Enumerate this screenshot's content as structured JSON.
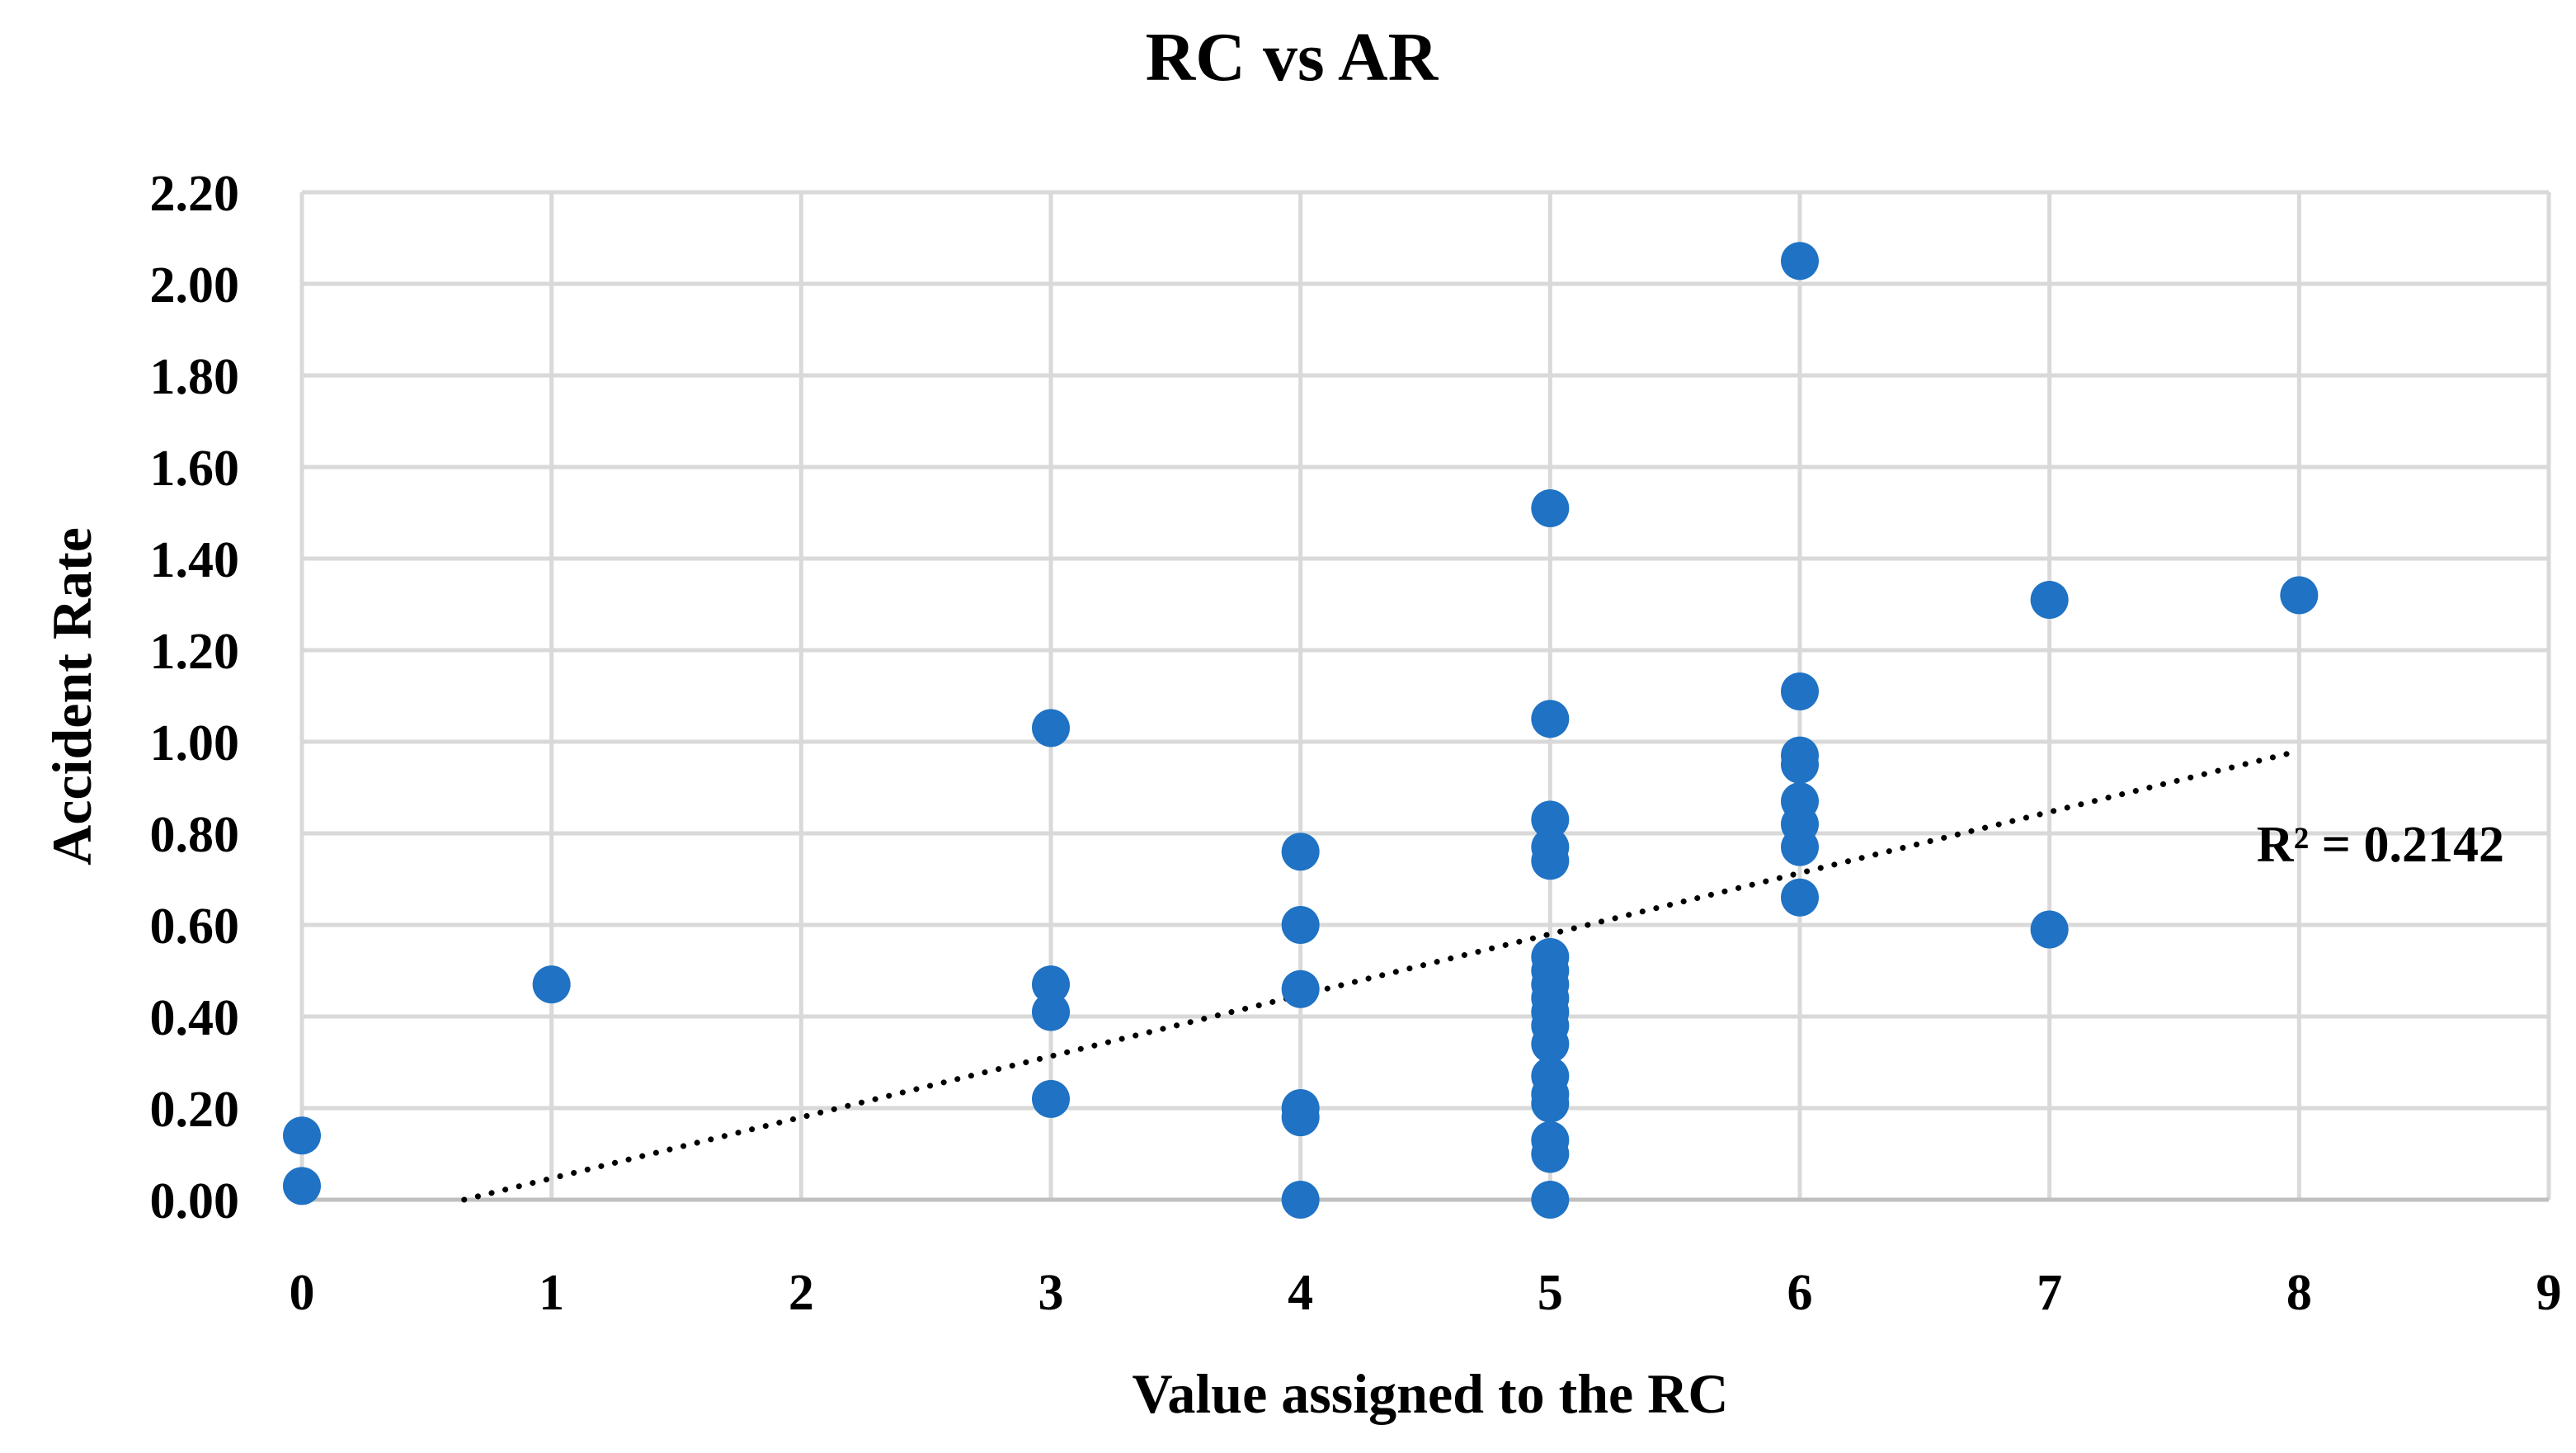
{
  "chart_data": {
    "type": "scatter",
    "title": "RC vs AR",
    "xlabel": "Value assigned to the RC",
    "ylabel": "Accident Rate",
    "xlim": [
      0,
      9
    ],
    "ylim": [
      0,
      2.2
    ],
    "x_ticks": [
      "0",
      "1",
      "2",
      "3",
      "4",
      "5",
      "6",
      "7",
      "8",
      "9"
    ],
    "y_ticks": [
      "0.00",
      "0.20",
      "0.40",
      "0.60",
      "0.80",
      "1.00",
      "1.20",
      "1.40",
      "1.60",
      "1.80",
      "2.00",
      "2.20"
    ],
    "grid": true,
    "marker_color": "#1f72c4",
    "series": [
      {
        "name": "AR",
        "points": [
          {
            "x": 0,
            "y": 0.14
          },
          {
            "x": 0,
            "y": 0.03
          },
          {
            "x": 1,
            "y": 0.47
          },
          {
            "x": 3,
            "y": 1.03
          },
          {
            "x": 3,
            "y": 0.47
          },
          {
            "x": 3,
            "y": 0.41
          },
          {
            "x": 3,
            "y": 0.22
          },
          {
            "x": 4,
            "y": 0.76
          },
          {
            "x": 4,
            "y": 0.6
          },
          {
            "x": 4,
            "y": 0.46
          },
          {
            "x": 4,
            "y": 0.2
          },
          {
            "x": 4,
            "y": 0.18
          },
          {
            "x": 4,
            "y": 0.0
          },
          {
            "x": 5,
            "y": 1.51
          },
          {
            "x": 5,
            "y": 1.05
          },
          {
            "x": 5,
            "y": 0.83
          },
          {
            "x": 5,
            "y": 0.77
          },
          {
            "x": 5,
            "y": 0.74
          },
          {
            "x": 5,
            "y": 0.53
          },
          {
            "x": 5,
            "y": 0.5
          },
          {
            "x": 5,
            "y": 0.47
          },
          {
            "x": 5,
            "y": 0.44
          },
          {
            "x": 5,
            "y": 0.41
          },
          {
            "x": 5,
            "y": 0.38
          },
          {
            "x": 5,
            "y": 0.34
          },
          {
            "x": 5,
            "y": 0.27
          },
          {
            "x": 5,
            "y": 0.23
          },
          {
            "x": 5,
            "y": 0.21
          },
          {
            "x": 5,
            "y": 0.13
          },
          {
            "x": 5,
            "y": 0.1
          },
          {
            "x": 5,
            "y": 0.0
          },
          {
            "x": 6,
            "y": 2.05
          },
          {
            "x": 6,
            "y": 1.11
          },
          {
            "x": 6,
            "y": 0.97
          },
          {
            "x": 6,
            "y": 0.95
          },
          {
            "x": 6,
            "y": 0.87
          },
          {
            "x": 6,
            "y": 0.82
          },
          {
            "x": 6,
            "y": 0.77
          },
          {
            "x": 6,
            "y": 0.66
          },
          {
            "x": 7,
            "y": 1.31
          },
          {
            "x": 7,
            "y": 0.59
          },
          {
            "x": 8,
            "y": 1.32
          }
        ]
      }
    ],
    "trendline": {
      "type": "linear",
      "style": "dotted",
      "color": "#000000",
      "x_start": 0.65,
      "y_start": 0.0,
      "x_end": 8,
      "y_end": 0.98,
      "r_squared_label": "R² = 0.2142"
    }
  }
}
